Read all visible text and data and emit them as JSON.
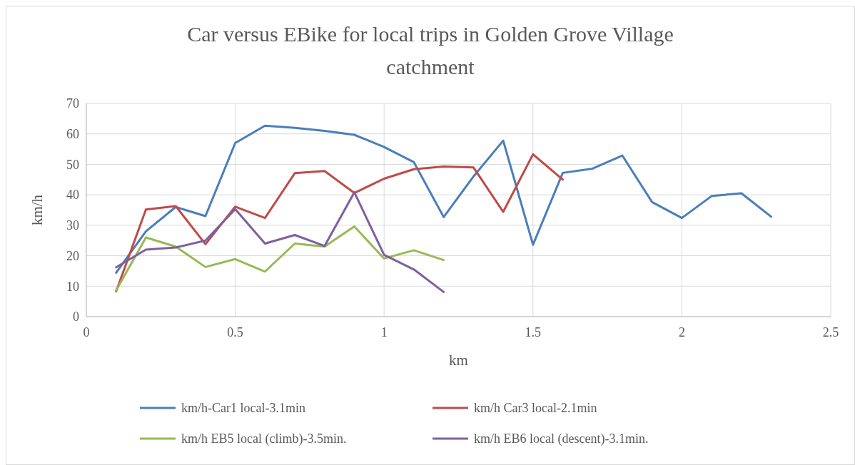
{
  "chart_data": {
    "type": "line",
    "title": "Car versus EBike for local trips in Golden Grove Village catchment",
    "xlabel": "km",
    "ylabel": "km/h",
    "xlim": [
      0,
      2.5
    ],
    "xticks": [
      0,
      0.5,
      1,
      1.5,
      2,
      2.5
    ],
    "ylim": [
      0,
      70
    ],
    "yticks": [
      0,
      10,
      20,
      30,
      40,
      50,
      60,
      70
    ],
    "grid": true,
    "legend": "bottom",
    "line_style": "solid",
    "marker": "none",
    "series": [
      {
        "name": "km/h-Car1 local-3.1min",
        "color": "#4a7ebb",
        "x": [
          0.1,
          0.2,
          0.3,
          0.4,
          0.5,
          0.6,
          0.7,
          0.8,
          0.9,
          1.0,
          1.1,
          1.2,
          1.3,
          1.4,
          1.5,
          1.6,
          1.7,
          1.8,
          1.9,
          2.0,
          2.1,
          2.2,
          2.3
        ],
        "values": [
          14.4,
          28,
          36,
          33,
          57,
          62.7,
          62,
          61,
          59.7,
          55.7,
          50.7,
          32.7,
          46,
          57.8,
          23.6,
          47.2,
          48.6,
          52.9,
          37.6,
          32.4,
          39.6,
          40.5,
          32.8
        ]
      },
      {
        "name": "km/h Car3 local-2.1min",
        "color": "#be4b48",
        "x": [
          0.1,
          0.2,
          0.3,
          0.4,
          0.5,
          0.6,
          0.7,
          0.8,
          0.9,
          1.0,
          1.1,
          1.2,
          1.3,
          1.4,
          1.5,
          1.6
        ],
        "values": [
          8.3,
          35.2,
          36.3,
          23.8,
          36.1,
          32.4,
          47.1,
          47.8,
          40.6,
          45.3,
          48.4,
          49.3,
          49,
          34.4,
          53.3,
          45
        ]
      },
      {
        "name": "km/h EB5 local (climb)-3.5min.",
        "color": "#98b954",
        "x": [
          0.1,
          0.2,
          0.3,
          0.4,
          0.5,
          0.6,
          0.7,
          0.8,
          0.9,
          1.0,
          1.1,
          1.2
        ],
        "values": [
          8.6,
          26,
          23,
          16.3,
          18.9,
          14.8,
          24,
          23,
          29.6,
          19.1,
          21.8,
          18.6
        ]
      },
      {
        "name": "km/h EB6 local (descent)-3.1min.",
        "color": "#7d60a0",
        "x": [
          0.1,
          0.2,
          0.3,
          0.4,
          0.5,
          0.6,
          0.7,
          0.8,
          0.9,
          1.0,
          1.1,
          1.2
        ],
        "values": [
          16.2,
          22,
          22.7,
          25,
          35.3,
          24,
          26.8,
          23.2,
          40.8,
          20.3,
          15.5,
          8.1
        ]
      }
    ]
  }
}
